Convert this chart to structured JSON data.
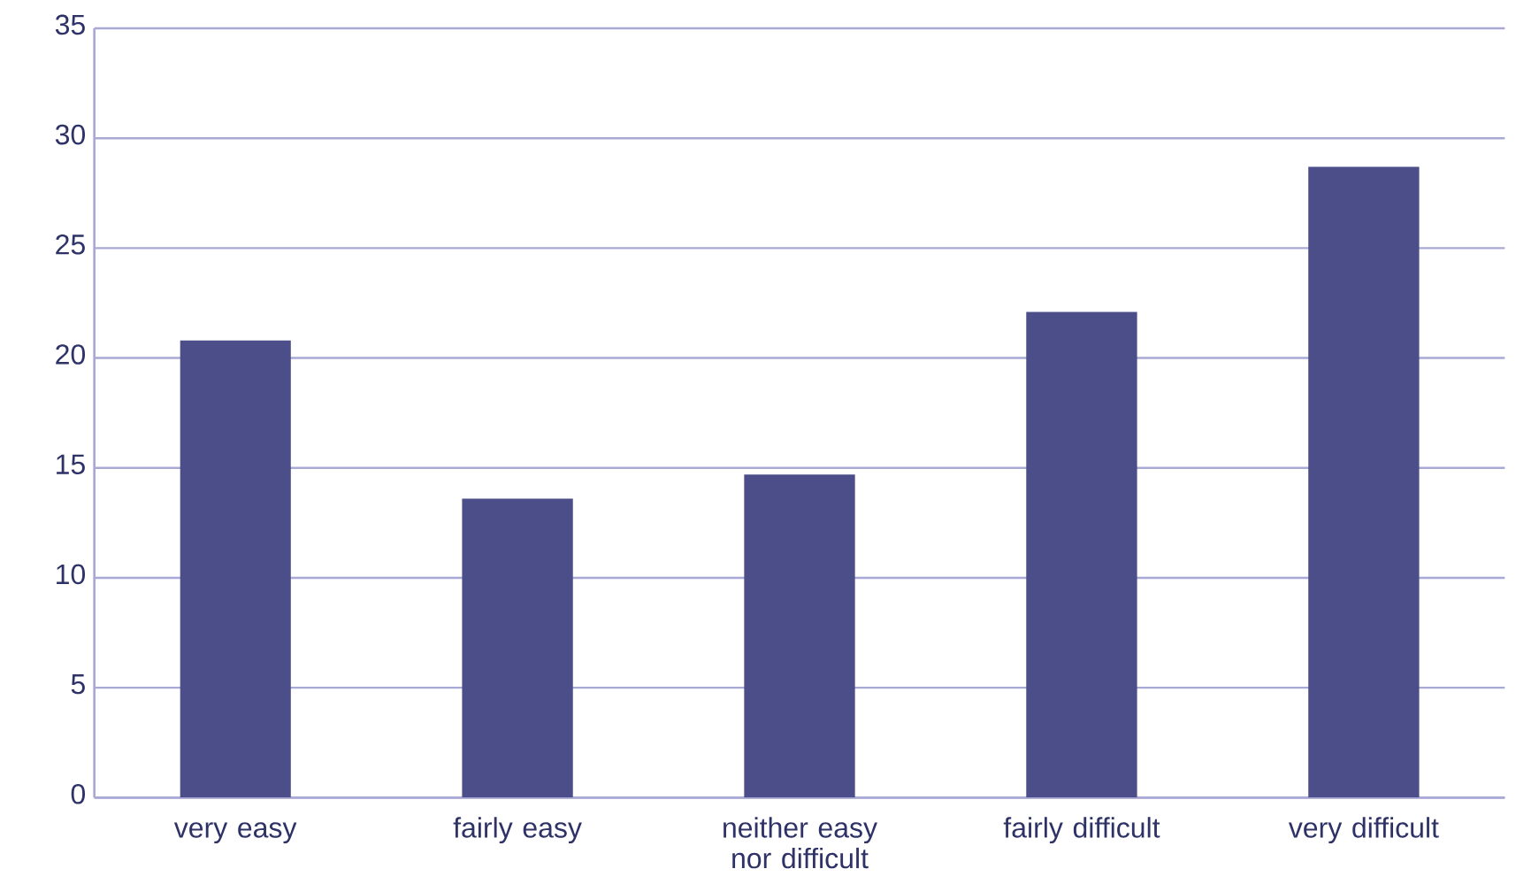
{
  "chart_data": {
    "type": "bar",
    "categories": [
      "very easy",
      "fairly easy",
      "neither easy nor difficult",
      "fairly difficult",
      "very difficult"
    ],
    "values": [
      20.8,
      13.6,
      14.7,
      22.1,
      28.7
    ],
    "color": "#4b4e88",
    "ylim": [
      0,
      35
    ],
    "yticks": [
      0,
      5,
      10,
      15,
      20,
      25,
      30,
      35
    ],
    "grid": "y"
  }
}
